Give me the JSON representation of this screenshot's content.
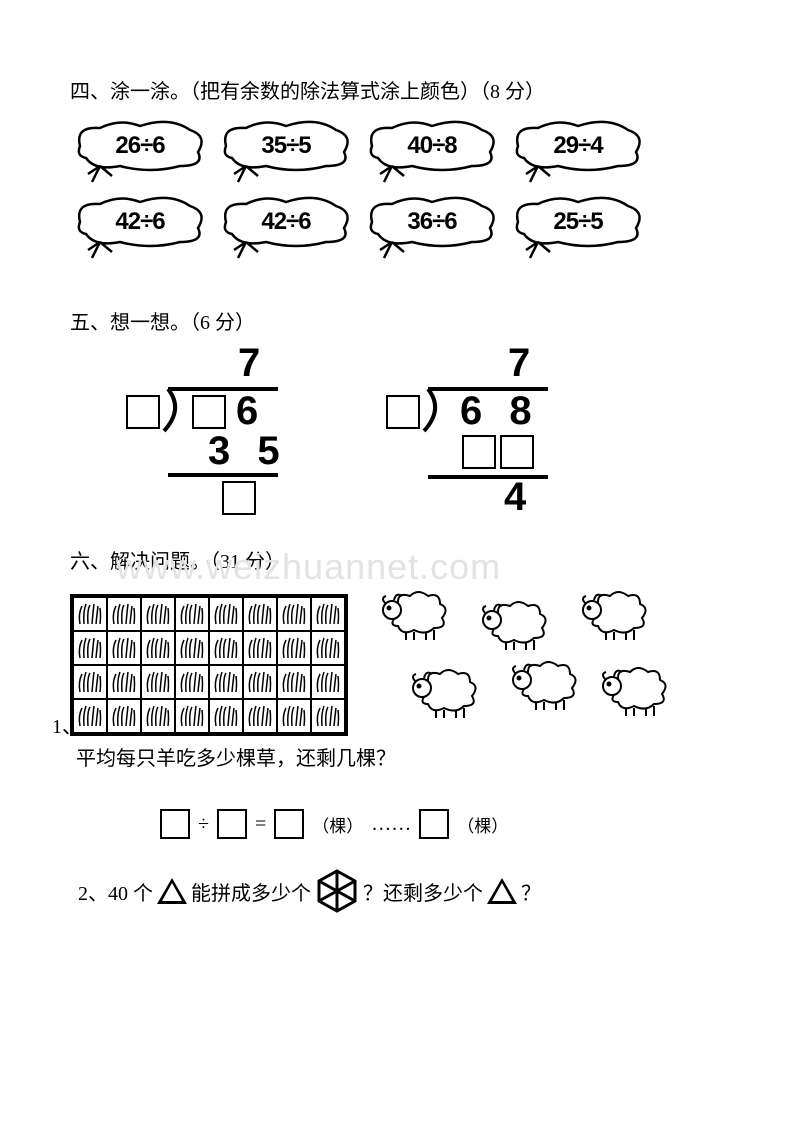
{
  "section4": {
    "heading": "四、涂一涂。（把有余数的除法算式涂上颜色）（8 分）",
    "row1": [
      "26÷6",
      "35÷5",
      "40÷8",
      "29÷4"
    ],
    "row2": [
      "42÷6",
      "42÷6",
      "36÷6",
      "25÷5"
    ]
  },
  "section5": {
    "heading": "五、想一想。（6 分）",
    "div1": {
      "quotient": "7",
      "dividend_ones": "6",
      "sub": "3 5"
    },
    "div2": {
      "quotient": "7",
      "dividend": "6 8",
      "remainder": "4"
    }
  },
  "watermark": "www.weizhuannet.com",
  "section6": {
    "heading": "六、解决问题。（31 分）",
    "q1_num": "1、",
    "q1_text": "平均每只羊吃多少棵草，还剩几棵？",
    "eq_sym_div": "÷",
    "eq_sym_eq": "=",
    "eq_unit": "（棵）",
    "eq_dots": "……",
    "q2_prefix": "2、40 个",
    "q2_mid1": "能拼成多少个",
    "q2_mid2": "？还剩多少个",
    "q2_end": "？"
  }
}
